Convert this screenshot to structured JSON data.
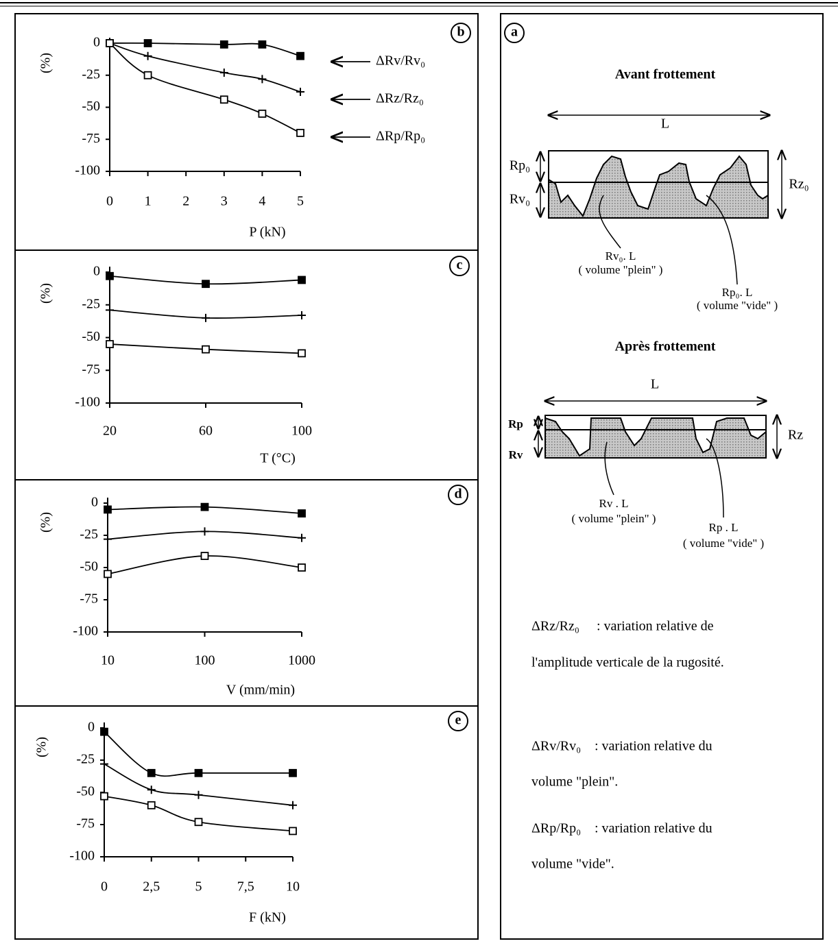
{
  "chart_data": [
    {
      "type": "line",
      "label": "b",
      "y_label": "(%)",
      "x_label": "P (kN)",
      "x": [
        0,
        1,
        3,
        4,
        5
      ],
      "xlim": [
        0,
        5
      ],
      "xticks": [
        0,
        1,
        2,
        3,
        4,
        5
      ],
      "ylim": [
        -100,
        0
      ],
      "yticks": [
        0,
        -25,
        -50,
        -75,
        -100
      ],
      "series": [
        {
          "name": "ΔRv/Rv₀",
          "color": "#000000",
          "marker": "filled-square",
          "values": [
            0,
            0,
            -1,
            -1,
            -10
          ]
        },
        {
          "name": "ΔRz/Rz₀",
          "color": "#000000",
          "marker": "plus",
          "values": [
            0,
            -10,
            -23,
            -28,
            -38
          ]
        },
        {
          "name": "ΔRp/Rp₀",
          "color": "#000000",
          "marker": "open-square",
          "values": [
            0,
            -25,
            -44,
            -55,
            -70
          ]
        }
      ]
    },
    {
      "type": "line",
      "label": "c",
      "y_label": "(%)",
      "x_label": "T (°C)",
      "x": [
        20,
        60,
        100
      ],
      "xlim": [
        20,
        100
      ],
      "xticks": [
        20,
        60,
        100
      ],
      "ylim": [
        -100,
        0
      ],
      "yticks": [
        0,
        -25,
        -50,
        -75,
        -100
      ],
      "series": [
        {
          "color": "#000000",
          "marker": "filled-square",
          "values": [
            -3,
            -9,
            -6
          ]
        },
        {
          "color": "#000000",
          "marker": "plus",
          "values": [
            -29,
            -35,
            -33
          ]
        },
        {
          "color": "#000000",
          "marker": "open-square",
          "values": [
            -55,
            -59,
            -62
          ]
        }
      ]
    },
    {
      "type": "line",
      "label": "d",
      "y_label": "(%)",
      "x_label": "V (mm/min)",
      "xscale": "log",
      "x": [
        10,
        100,
        1000
      ],
      "xlim": [
        10,
        1000
      ],
      "xticks": [
        10,
        100,
        1000
      ],
      "ylim": [
        -100,
        0
      ],
      "yticks": [
        0,
        -25,
        -50,
        -75,
        -100
      ],
      "series": [
        {
          "color": "#000000",
          "marker": "filled-square",
          "values": [
            -5,
            -3,
            -8
          ]
        },
        {
          "color": "#000000",
          "marker": "plus",
          "values": [
            -28,
            -22,
            -27
          ]
        },
        {
          "color": "#000000",
          "marker": "open-square",
          "values": [
            -55,
            -41,
            -50
          ]
        }
      ]
    },
    {
      "type": "line",
      "label": "e",
      "y_label": "(%)",
      "x_label": "F (kN)",
      "x": [
        0,
        2.5,
        5,
        10
      ],
      "xlim": [
        0,
        10
      ],
      "xticks": [
        0,
        {
          "value": 2.5,
          "label": "2,5"
        },
        5,
        {
          "value": 7.5,
          "label": "7,5"
        },
        10
      ],
      "ylim": [
        -100,
        0
      ],
      "yticks": [
        0,
        -25,
        -50,
        -75,
        -100
      ],
      "series": [
        {
          "color": "#000000",
          "marker": "filled-square",
          "values": [
            -3,
            -35,
            -35,
            -35
          ]
        },
        {
          "color": "#000000",
          "marker": "plus",
          "values": [
            -28,
            -48,
            -52,
            -60
          ]
        },
        {
          "color": "#000000",
          "marker": "open-square",
          "values": [
            -53,
            -60,
            -73,
            -80
          ]
        }
      ]
    }
  ],
  "panel_a": {
    "label": "a",
    "before": {
      "title": "Avant frottement",
      "length": "L",
      "rp": "Rp₀",
      "rv": "Rv₀",
      "rz": "Rz₀",
      "full_label": "Rv₀. L",
      "full_note": "( volume \"plein\" )",
      "empty_label": "Rp₀. L",
      "empty_note": "( volume \"vide\" )"
    },
    "after": {
      "title": "Après frottement",
      "length": "L",
      "rp": "Rp",
      "rv": "Rv",
      "rz": "Rz",
      "full_label": "Rv . L",
      "full_note": "( volume \"plein\" )",
      "empty_label": "Rp . L",
      "empty_note": "( volume \"vide\" )"
    },
    "definitions": [
      {
        "term": "ΔRz/Rz₀",
        "lines": [
          ": variation relative de",
          "l'amplitude verticale de la rugosité."
        ]
      },
      {
        "term": "ΔRv/Rv₀",
        "lines": [
          ": variation relative du",
          "volume \"plein\"."
        ]
      },
      {
        "term": "ΔRp/Rp₀",
        "lines": [
          ": variation relative du",
          "volume \"vide\"."
        ]
      }
    ]
  }
}
